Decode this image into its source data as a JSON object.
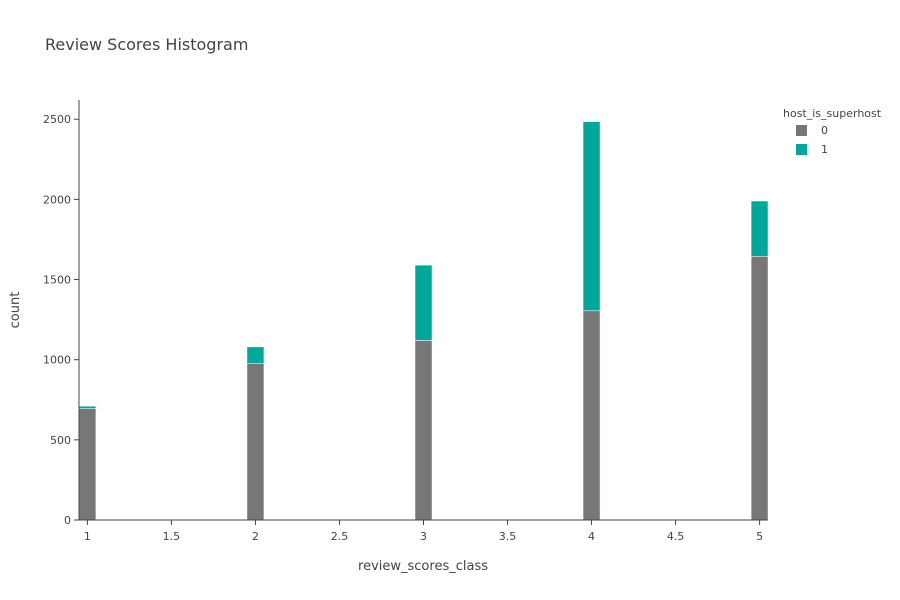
{
  "chart_data": {
    "type": "bar",
    "barmode": "stack",
    "title": "Review Scores Histogram",
    "xlabel": "review_scores_class",
    "ylabel": "count",
    "x": [
      1,
      2,
      3,
      4,
      5
    ],
    "xlim": [
      0.95,
      5.05
    ],
    "ylim": [
      0,
      2620
    ],
    "xticks": [
      1,
      1.5,
      2,
      2.5,
      3,
      3.5,
      4,
      4.5,
      5
    ],
    "xtick_labels": [
      "1",
      "1.5",
      "2",
      "2.5",
      "3",
      "3.5",
      "4",
      "4.5",
      "5"
    ],
    "yticks": [
      0,
      500,
      1000,
      1500,
      2000,
      2500
    ],
    "ytick_labels": [
      "0",
      "500",
      "1000",
      "1500",
      "2000",
      "2500"
    ],
    "grid": false,
    "legend": {
      "title": "host_is_superhost",
      "position": "top-right"
    },
    "series": [
      {
        "name": "0",
        "color": "#777777",
        "values": [
          695,
          975,
          1120,
          1305,
          1645
        ]
      },
      {
        "name": "1",
        "color": "#00a89a",
        "values": [
          15,
          105,
          470,
          1180,
          345
        ]
      }
    ]
  }
}
